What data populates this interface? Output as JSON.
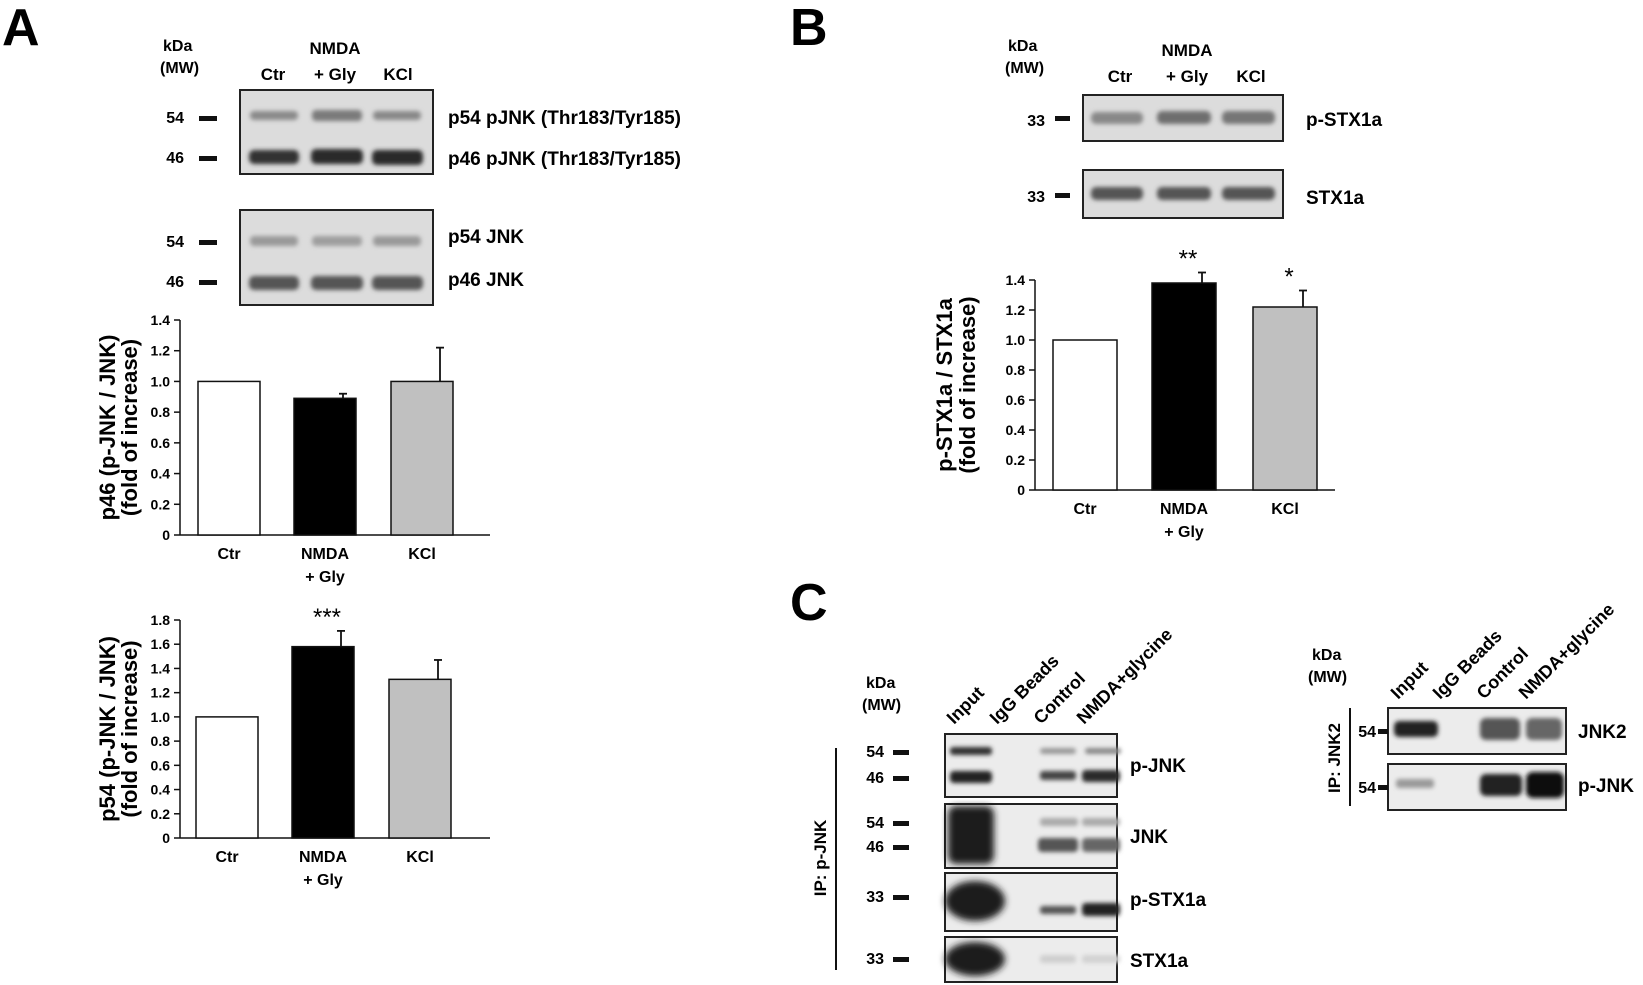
{
  "panels": {
    "a": {
      "letter": "A",
      "kda": [
        "kDa",
        "(MW)"
      ],
      "lanes": [
        "Ctr",
        "NMDA",
        "+ Gly",
        "KCl"
      ],
      "blot1": {
        "markers": [
          "54",
          "46"
        ],
        "labels": [
          "p54 pJNK (Thr183/Tyr185)",
          "p46 pJNK (Thr183/Tyr185)"
        ]
      },
      "blot2": {
        "markers": [
          "54",
          "46"
        ],
        "labels": [
          "p54 JNK",
          "p46 JNK"
        ]
      }
    },
    "b": {
      "letter": "B",
      "kda": [
        "kDa",
        "(MW)"
      ],
      "lanes": [
        "Ctr",
        "NMDA",
        "+ Gly",
        "KCl"
      ],
      "blot1": {
        "markers": [
          "33"
        ],
        "labels": [
          "p-STX1a"
        ]
      },
      "blot2": {
        "markers": [
          "33"
        ],
        "labels": [
          "STX1a"
        ]
      }
    },
    "c": {
      "letter": "C",
      "left": {
        "kda": [
          "kDa",
          "(MW)"
        ],
        "ip_label": "IP: p-JNK",
        "lanes": [
          "Input",
          "IgG Beads",
          "Control",
          "NMDA+glycine"
        ],
        "blots": [
          {
            "label": "p-JNK",
            "markers": [
              "54",
              "46"
            ]
          },
          {
            "label": "JNK",
            "markers": [
              "54",
              "46"
            ]
          },
          {
            "label": "p-STX1a",
            "markers": [
              "33"
            ]
          },
          {
            "label": "STX1a",
            "markers": [
              "33"
            ]
          }
        ]
      },
      "right": {
        "kda": [
          "kDa",
          "(MW)"
        ],
        "ip_label": "IP: JNK2",
        "lanes": [
          "Input",
          "IgG Beads",
          "Control",
          "NMDA+glycine"
        ],
        "blots": [
          {
            "label": "JNK2",
            "markers": [
              "54"
            ]
          },
          {
            "label": "p-JNK",
            "markers": [
              "54"
            ]
          }
        ]
      }
    }
  },
  "chart_data": [
    {
      "type": "bar",
      "id": "a-p46",
      "categories": [
        [
          "Ctr"
        ],
        [
          "NMDA",
          "+ Gly"
        ],
        [
          "KCl"
        ]
      ],
      "values": [
        1.0,
        0.89,
        1.0
      ],
      "errors": [
        0,
        0.03,
        0.22
      ],
      "colors": [
        "#ffffff",
        "#000000",
        "#c0c0c0"
      ],
      "significance": [
        "",
        "",
        ""
      ],
      "ylabel_lines": [
        "p46 (p-JNK / JNK)",
        "(fold of increase)"
      ],
      "ylim": [
        0,
        1.4
      ],
      "yticks": [
        "0",
        "0.2",
        "0.4",
        "0.6",
        "0.8",
        "1.0",
        "1.2",
        "1.4"
      ]
    },
    {
      "type": "bar",
      "id": "a-p54",
      "categories": [
        [
          "Ctr"
        ],
        [
          "NMDA",
          "+ Gly"
        ],
        [
          "KCl"
        ]
      ],
      "values": [
        1.0,
        1.58,
        1.31
      ],
      "errors": [
        0,
        0.13,
        0.16
      ],
      "colors": [
        "#ffffff",
        "#000000",
        "#c0c0c0"
      ],
      "significance": [
        "",
        "***",
        ""
      ],
      "ylabel_lines": [
        "p54 (p-JNK / JNK)",
        "(fold of increase)"
      ],
      "ylim": [
        0,
        1.8
      ],
      "yticks": [
        "0",
        "0.2",
        "0.4",
        "0.6",
        "0.8",
        "1.0",
        "1.2",
        "1.4",
        "1.6",
        "1.8"
      ]
    },
    {
      "type": "bar",
      "id": "b-stx1a",
      "categories": [
        [
          "Ctr"
        ],
        [
          "NMDA",
          "+ Gly"
        ],
        [
          "KCl"
        ]
      ],
      "values": [
        1.0,
        1.38,
        1.22
      ],
      "errors": [
        0,
        0.07,
        0.11
      ],
      "colors": [
        "#ffffff",
        "#000000",
        "#c0c0c0"
      ],
      "significance": [
        "",
        "**",
        "*"
      ],
      "ylabel_lines": [
        "p-STX1a / STX1a",
        "(fold of increase)"
      ],
      "ylim": [
        0,
        1.4
      ],
      "yticks": [
        "0",
        "0.2",
        "0.4",
        "0.6",
        "0.8",
        "1.0",
        "1.2",
        "1.4"
      ]
    }
  ]
}
